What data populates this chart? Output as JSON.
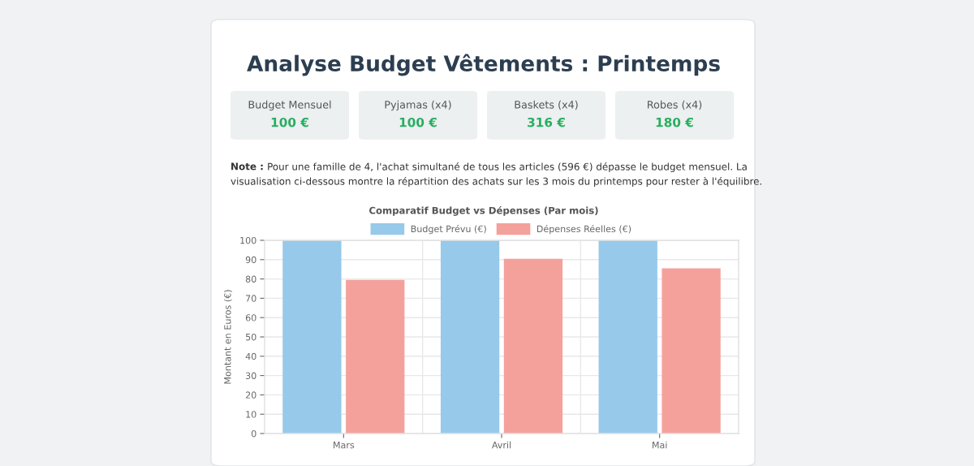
{
  "chart_data": [
    {
      "type": "other",
      "title": "Analyse Budget Vêtements : Printemps",
      "annotations": [
        "Budget Mensuel",
        "100 €",
        "Pyjamas (x4)",
        "100 €",
        "Baskets (x4)",
        "316 €",
        "Robes (x4)",
        "180 €",
        "Note :",
        " Pour une famille de 4, l'achat simultané de tous les articles (596 €) dépasse le budget mensuel. La",
        "visualisation ci-dessous montre la répartition des achats sur les 3 mois du printemps pour rester à l'équilibre."
      ]
    },
    {
      "type": "bar",
      "title": "Comparatif Budget vs Dépenses (Par mois)",
      "ylabel": "Montant en Euros (€)",
      "categories": [
        "Mars",
        "Avril",
        "Mai"
      ],
      "series": [
        {
          "name": "Budget Prévu (€)",
          "color": "#97c9ea",
          "values": [
            100,
            100,
            100
          ]
        },
        {
          "name": "Dépenses Réelles (€)",
          "color": "#f4a19c",
          "values": [
            79,
            90,
            85
          ]
        }
      ],
      "ylim": [
        0,
        100
      ],
      "yticks": [
        0,
        10,
        20,
        30,
        40,
        50,
        60,
        70,
        80,
        90,
        100
      ],
      "grid": true,
      "legend": "top"
    }
  ]
}
